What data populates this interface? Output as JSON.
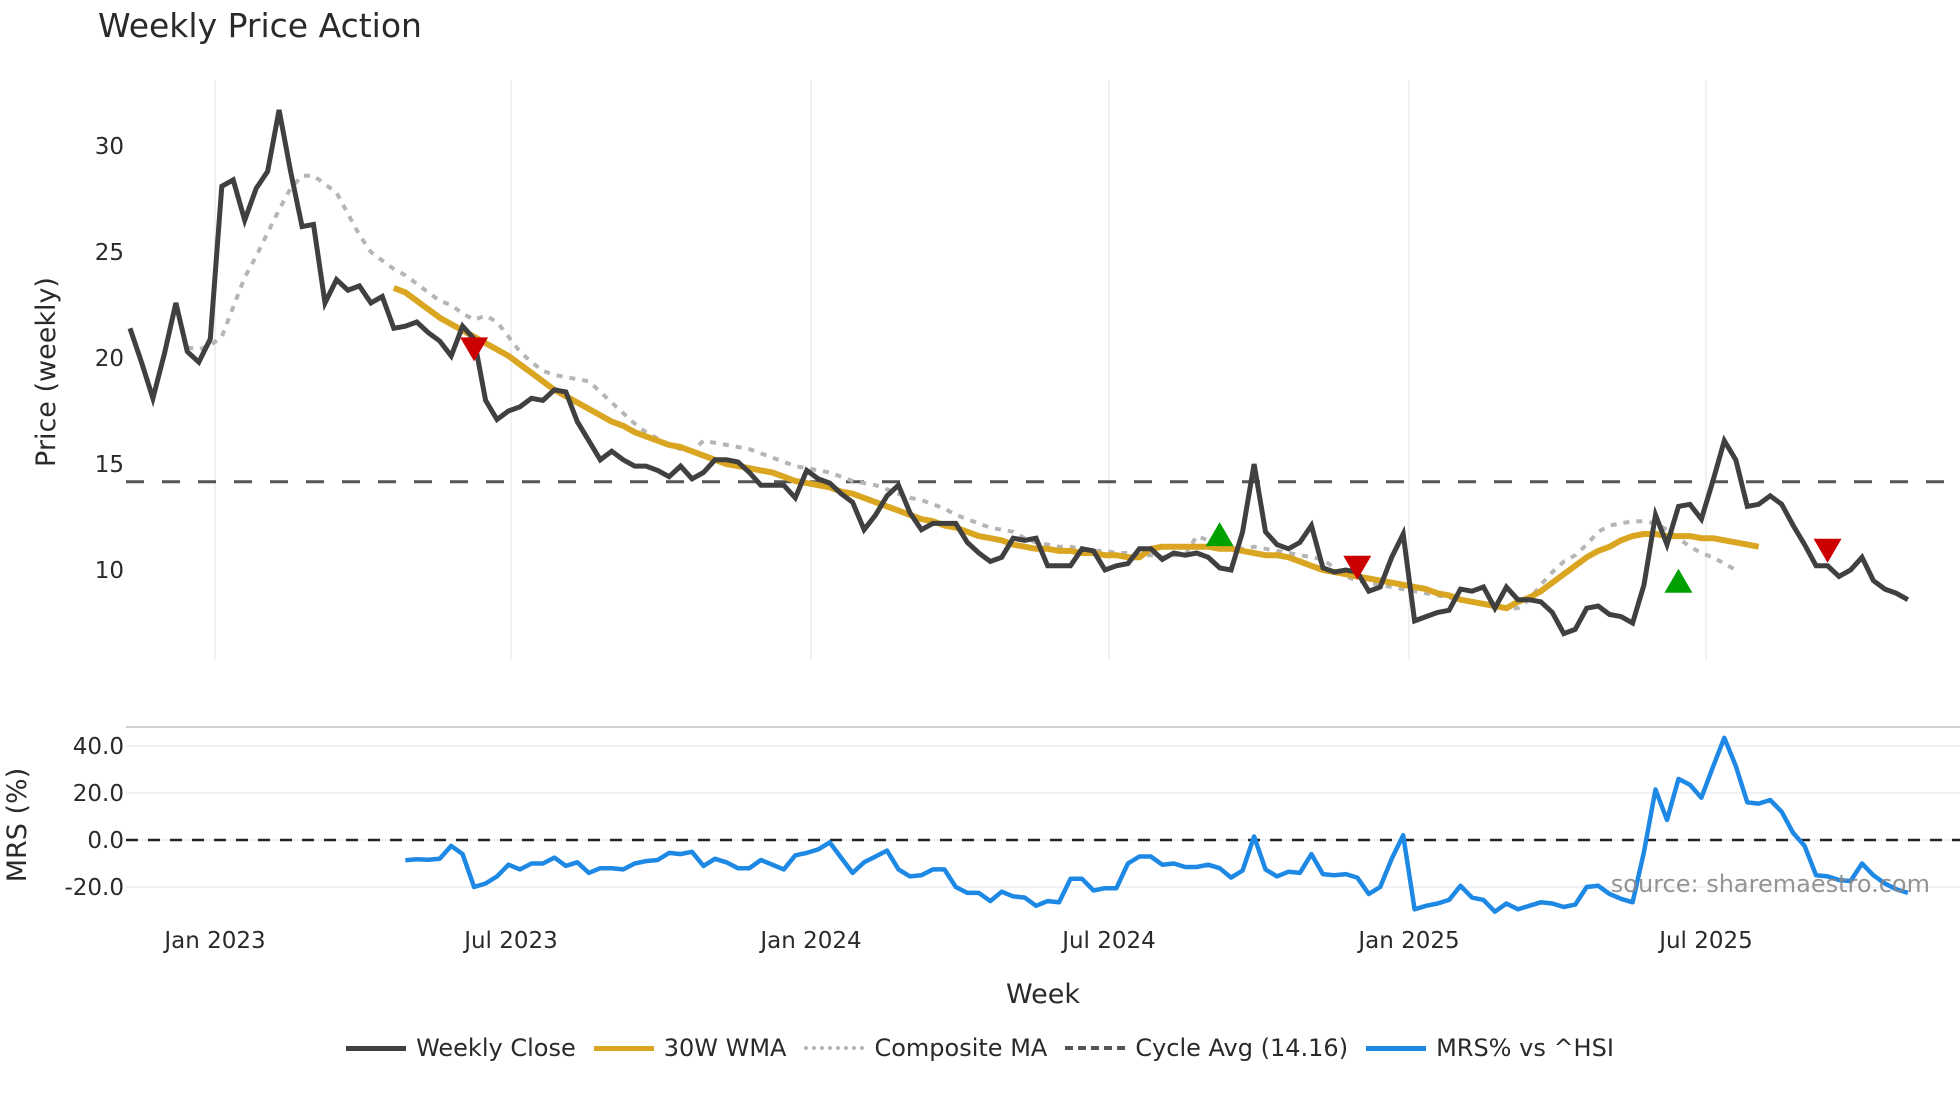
{
  "title": "Weekly Price Action",
  "watermark": "source: sharemaestro.com",
  "colors": {
    "close": "#404040",
    "wma": "#DAA520",
    "composite": "#B5B5B5",
    "cycle": "#555555",
    "mrs": "#1E88E5",
    "buy": "#00A000",
    "sell": "#CC0000",
    "grid": "#EEF1F5"
  },
  "legend": [
    {
      "label": "Weekly Close",
      "key": "close",
      "style": "solid"
    },
    {
      "label": "30W WMA",
      "key": "wma",
      "style": "solid"
    },
    {
      "label": "Composite MA",
      "key": "composite",
      "style": "dotted"
    },
    {
      "label": "Cycle Avg (14.16)",
      "key": "cycle",
      "style": "dashed"
    },
    {
      "label": "MRS% vs ^HSI",
      "key": "mrs",
      "style": "solid"
    }
  ],
  "chart_data": [
    {
      "type": "line",
      "title": "Weekly Price Action",
      "xlabel": "Week",
      "ylabel": "Price (weekly)",
      "x_ticks": [
        "Jan 2023",
        "Jul 2023",
        "Jan 2024",
        "Jul 2024",
        "Jan 2025",
        "Jul 2025"
      ],
      "y_ticks": [
        10,
        15,
        20,
        25,
        30
      ],
      "ylim": [
        5.5,
        33.5
      ],
      "grid": true,
      "cycle_avg": 14.16,
      "series": [
        {
          "name": "Weekly Close",
          "start_week_index": 0,
          "values": [
            21.4,
            19.8,
            18.1,
            20.2,
            22.6,
            20.3,
            19.8,
            20.9,
            28.1,
            28.4,
            26.5,
            28.0,
            28.8,
            31.7,
            28.8,
            26.2,
            26.3,
            22.6,
            23.7,
            23.2,
            23.4,
            22.6,
            22.9,
            21.4,
            21.5,
            21.7,
            21.2,
            20.8,
            20.1,
            21.5,
            20.9,
            18.0,
            17.1,
            17.5,
            17.7,
            18.1,
            18.0,
            18.5,
            18.4,
            17.0,
            16.1,
            15.2,
            15.6,
            15.2,
            14.9,
            14.9,
            14.7,
            14.4,
            14.9,
            14.3,
            14.6,
            15.2,
            15.2,
            15.1,
            14.6,
            14.0,
            14.0,
            14.0,
            13.4,
            14.7,
            14.3,
            14.1,
            13.6,
            13.2,
            11.9,
            12.6,
            13.5,
            14.0,
            12.7,
            11.9,
            12.2,
            12.2,
            12.2,
            11.3,
            10.8,
            10.4,
            10.6,
            11.5,
            11.4,
            11.5,
            10.2,
            10.2,
            10.2,
            11.0,
            10.9,
            10.0,
            10.2,
            10.3,
            11.0,
            11.0,
            10.5,
            10.8,
            10.7,
            10.8,
            10.6,
            10.1,
            10.0,
            11.8,
            15.0,
            11.8,
            11.2,
            11.0,
            11.3,
            12.1,
            10.1,
            9.9,
            10.0,
            9.9,
            9.0,
            9.2,
            10.6,
            11.7,
            7.6,
            7.8,
            8.0,
            8.1,
            9.1,
            9.0,
            9.2,
            8.2,
            9.2,
            8.6,
            8.6,
            8.5,
            8.0,
            7.0,
            7.2,
            8.2,
            8.3,
            7.9,
            7.8,
            7.5,
            9.3,
            12.6,
            11.2,
            13.0,
            13.1,
            12.4,
            14.2,
            16.1,
            15.2,
            13.0,
            13.1,
            13.5,
            13.1,
            12.1,
            11.2,
            10.2,
            10.2,
            9.7,
            10.0,
            10.6,
            9.5,
            9.1,
            8.9,
            8.6
          ]
        },
        {
          "name": "30W WMA",
          "start_week_index": 23,
          "values": [
            23.3,
            23.1,
            22.7,
            22.3,
            21.9,
            21.6,
            21.3,
            21.0,
            20.7,
            20.4,
            20.1,
            19.7,
            19.3,
            18.9,
            18.5,
            18.2,
            17.9,
            17.6,
            17.3,
            17.0,
            16.8,
            16.5,
            16.3,
            16.1,
            15.9,
            15.8,
            15.6,
            15.4,
            15.2,
            15.0,
            14.9,
            14.8,
            14.7,
            14.6,
            14.4,
            14.2,
            14.1,
            14.0,
            13.9,
            13.7,
            13.6,
            13.4,
            13.2,
            13.0,
            12.8,
            12.6,
            12.4,
            12.3,
            12.1,
            12.0,
            11.8,
            11.6,
            11.5,
            11.4,
            11.2,
            11.1,
            11.0,
            11.0,
            10.9,
            10.9,
            10.8,
            10.8,
            10.7,
            10.7,
            10.6,
            10.6,
            11.0,
            11.1,
            11.1,
            11.1,
            11.1,
            11.1,
            11.0,
            11.0,
            10.9,
            10.8,
            10.7,
            10.7,
            10.6,
            10.4,
            10.2,
            10.0,
            9.9,
            9.8,
            9.7,
            9.6,
            9.5,
            9.4,
            9.3,
            9.2,
            9.1,
            8.9,
            8.8,
            8.6,
            8.5,
            8.4,
            8.3,
            8.2,
            8.5,
            8.7,
            9.0,
            9.4,
            9.8,
            10.2,
            10.6,
            10.9,
            11.1,
            11.4,
            11.6,
            11.7,
            11.7,
            11.6,
            11.6,
            11.6,
            11.5,
            11.5,
            11.4,
            11.3,
            11.2,
            11.1
          ]
        },
        {
          "name": "Composite MA",
          "start_week_index": 5,
          "values": [
            20.5,
            20.4,
            20.6,
            21.0,
            22.4,
            23.8,
            24.8,
            25.9,
            27.0,
            28.0,
            28.6,
            28.6,
            28.2,
            27.8,
            26.8,
            25.8,
            25.0,
            24.6,
            24.2,
            23.9,
            23.5,
            23.1,
            22.7,
            22.5,
            22.1,
            21.8,
            22.0,
            21.7,
            21.0,
            20.3,
            19.8,
            19.4,
            19.2,
            19.1,
            19.0,
            18.9,
            18.4,
            17.9,
            17.4,
            16.9,
            16.5,
            16.2,
            15.9,
            15.7,
            15.6,
            16.1,
            16.0,
            15.9,
            15.8,
            15.7,
            15.5,
            15.3,
            15.1,
            14.9,
            14.8,
            14.7,
            14.6,
            14.4,
            14.2,
            14.1,
            14.0,
            13.8,
            13.6,
            13.4,
            13.3,
            13.1,
            12.9,
            12.6,
            12.4,
            12.2,
            12.0,
            11.9,
            11.8,
            11.5,
            11.3,
            11.2,
            11.1,
            11.1,
            11.0,
            10.9,
            10.9,
            10.8,
            10.8,
            10.7,
            10.7,
            10.6,
            10.7,
            10.7,
            11.6,
            11.4,
            11.3,
            11.1,
            11.0,
            11.1,
            11.0,
            10.9,
            10.8,
            10.7,
            10.6,
            10.5,
            10.1,
            9.7,
            9.5,
            9.4,
            9.3,
            9.2,
            9.1,
            9.0,
            8.9,
            8.8,
            8.7,
            8.6,
            8.5,
            8.4,
            8.3,
            8.2,
            8.2,
            8.6,
            9.3,
            9.9,
            10.4,
            10.7,
            11.2,
            11.8,
            12.1,
            12.2,
            12.3,
            12.3,
            12.2,
            11.9,
            11.5,
            11.1,
            10.8,
            10.6,
            10.3,
            10.0
          ]
        }
      ],
      "markers": [
        {
          "type": "sell",
          "week_index": 30,
          "value": 20.5
        },
        {
          "type": "buy",
          "week_index": 95,
          "value": 11.6
        },
        {
          "type": "sell",
          "week_index": 107,
          "value": 10.2
        },
        {
          "type": "buy",
          "week_index": 135,
          "value": 9.4
        },
        {
          "type": "sell",
          "week_index": 148,
          "value": 11.0
        }
      ],
      "total_weeks": 150
    },
    {
      "type": "line",
      "title": "",
      "xlabel": "Week",
      "ylabel": "MRS (%)",
      "x_ticks": [
        "Jan 2023",
        "Jul 2023",
        "Jan 2024",
        "Jul 2024",
        "Jan 2025",
        "Jul 2025"
      ],
      "y_ticks": [
        "40.0",
        "20.0",
        "0.0",
        "-20.0"
      ],
      "ylim": [
        -31,
        48
      ],
      "zero_line": 0,
      "series": [
        {
          "name": "MRS% vs ^HSI",
          "start_week_index": 24,
          "values": [
            -8.6,
            -8.2,
            -8.4,
            -8.0,
            -2.5,
            -6.0,
            -20.0,
            -18.5,
            -15.5,
            -10.5,
            -12.5,
            -10.0,
            -10.0,
            -7.5,
            -11.0,
            -9.5,
            -14.0,
            -12.0,
            -12.0,
            -12.5,
            -10.0,
            -9.0,
            -8.5,
            -5.5,
            -6.0,
            -5.0,
            -11.0,
            -8.0,
            -9.5,
            -12.0,
            -12.0,
            -8.5,
            -10.5,
            -12.5,
            -6.5,
            -5.5,
            -4.0,
            -1.0,
            -7.5,
            -14.0,
            -9.5,
            -7.0,
            -4.5,
            -12.5,
            -15.5,
            -15.0,
            -12.5,
            -12.5,
            -20.0,
            -22.5,
            -22.5,
            -26.0,
            -22.0,
            -24.0,
            -24.5,
            -28.0,
            -26.0,
            -26.5,
            -16.5,
            -16.5,
            -21.5,
            -20.5,
            -20.5,
            -10.0,
            -7.0,
            -7.0,
            -10.5,
            -10.0,
            -11.5,
            -11.5,
            -10.5,
            -12.0,
            -16.0,
            -13.0,
            1.5,
            -12.5,
            -15.5,
            -13.5,
            -14.0,
            -6.0,
            -14.5,
            -15.0,
            -14.5,
            -16.0,
            -23.0,
            -20.0,
            -8.0,
            2.0,
            -29.5,
            -28.0,
            -27.0,
            -25.5,
            -19.5,
            -24.5,
            -25.5,
            -30.5,
            -27.0,
            -29.5,
            -28.0,
            -26.5,
            -27.0,
            -28.5,
            -27.5,
            -20.0,
            -19.5,
            -23.0,
            -25.0,
            -26.5,
            -5.0,
            21.5,
            8.5,
            26.0,
            23.5,
            18.0,
            31.0,
            43.5,
            31.5,
            16.0,
            15.5,
            17.0,
            12.0,
            3.0,
            -2.5,
            -15.0,
            -15.5,
            -17.0,
            -17.5,
            -10.0,
            -15.0,
            -18.5,
            -21.0,
            -22.5
          ]
        }
      ]
    }
  ]
}
